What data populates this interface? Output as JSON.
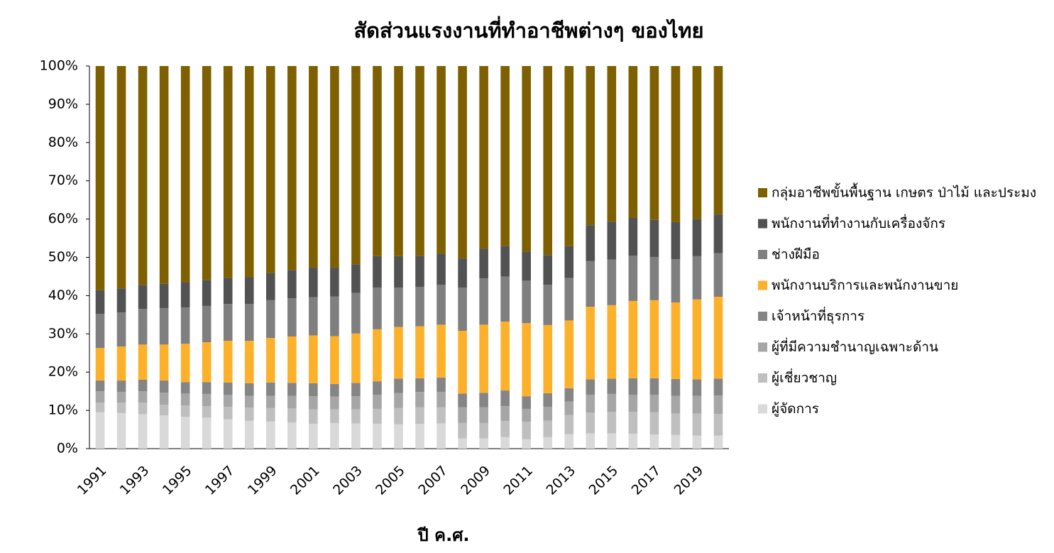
{
  "chart_data": {
    "type": "stacked_bar",
    "title": "สัดส่วนแรงงานที่ทำอาชีพต่างๆ ของไทย",
    "x_label": "ปี ค.ศ.",
    "categories": [
      "1991",
      null,
      "1993",
      null,
      "1995",
      null,
      "1997",
      null,
      "1999",
      null,
      "2001",
      null,
      "2003",
      null,
      "2005",
      null,
      "2007",
      null,
      "2009",
      null,
      "2011",
      null,
      "2013",
      null,
      "2015",
      null,
      "2017",
      null,
      "2019",
      null
    ],
    "ylim": [
      0,
      100
    ],
    "yticks": [
      {
        "value": 0,
        "label": "0%"
      },
      {
        "value": 10,
        "label": "10%"
      },
      {
        "value": 20,
        "label": "20%"
      },
      {
        "value": 30,
        "label": "30%"
      },
      {
        "value": 40,
        "label": "40%"
      },
      {
        "value": 50,
        "label": "50%"
      },
      {
        "value": 60,
        "label": "60%"
      },
      {
        "value": 70,
        "label": "70%"
      },
      {
        "value": 80,
        "label": "80%"
      },
      {
        "value": 90,
        "label": "90%"
      },
      {
        "value": 100,
        "label": "100%"
      }
    ],
    "legend": "right",
    "series": [
      {
        "name": "ผู้จัดการ",
        "color": "#d9d9d9",
        "values": [
          9.5,
          9.3,
          9.0,
          8.7,
          8.3,
          8.1,
          7.7,
          7.3,
          7.1,
          6.8,
          6.5,
          6.7,
          6.6,
          6.5,
          6.4,
          6.5,
          6.6,
          2.7,
          2.7,
          3.0,
          2.5,
          3.0,
          3.8,
          4.0,
          4.0,
          3.9,
          3.7,
          3.6,
          3.4,
          3.4
        ]
      },
      {
        "name": "ผู้เชี่ยวชาญ",
        "color": "#bfbfbf",
        "values": [
          2.5,
          2.7,
          3.0,
          2.8,
          3.0,
          3.0,
          3.2,
          3.4,
          3.5,
          3.7,
          3.8,
          3.6,
          3.7,
          3.9,
          4.2,
          4.3,
          4.2,
          4.0,
          4.0,
          4.2,
          4.5,
          4.3,
          5.0,
          5.4,
          5.6,
          5.7,
          5.8,
          5.6,
          5.8,
          5.7
        ]
      },
      {
        "name": "ผู้ที่มีความชำนาญเฉพาะด้าน",
        "color": "#a6a6a6",
        "values": [
          3.0,
          2.8,
          3.0,
          3.1,
          3.1,
          3.2,
          3.2,
          3.1,
          3.2,
          3.3,
          3.4,
          3.3,
          3.4,
          3.7,
          3.9,
          4.0,
          4.0,
          4.1,
          4.1,
          3.9,
          3.4,
          3.6,
          3.5,
          4.7,
          4.7,
          4.5,
          4.6,
          4.6,
          4.6,
          4.8
        ]
      },
      {
        "name": "เจ้าหน้าที่ธุรการ",
        "color": "#858585",
        "values": [
          2.8,
          3.0,
          3.0,
          3.2,
          3.0,
          3.1,
          3.2,
          3.3,
          3.5,
          3.4,
          3.4,
          3.3,
          3.5,
          3.5,
          3.8,
          3.6,
          3.8,
          3.6,
          3.8,
          4.1,
          3.3,
          3.6,
          3.5,
          4.0,
          4.0,
          4.3,
          4.3,
          4.4,
          4.3,
          4.4
        ]
      },
      {
        "name": "พนักงานบริการและพนักงานขาย",
        "color": "#fdb12b",
        "values": [
          8.5,
          8.9,
          9.2,
          9.4,
          10.0,
          10.4,
          10.9,
          11.1,
          11.6,
          12.1,
          12.5,
          12.5,
          12.9,
          13.6,
          13.5,
          13.6,
          13.8,
          16.4,
          17.8,
          18.0,
          19.1,
          17.8,
          17.7,
          19.0,
          19.2,
          20.2,
          20.4,
          20.0,
          20.9,
          21.4
        ]
      },
      {
        "name": "ช่างฝีมือ",
        "color": "#7f7f7f",
        "values": [
          8.9,
          8.9,
          9.3,
          9.5,
          9.5,
          9.5,
          9.6,
          9.6,
          9.9,
          10.0,
          10.0,
          10.4,
          10.6,
          10.9,
          10.3,
          10.3,
          10.4,
          11.3,
          12.1,
          11.8,
          11.1,
          10.5,
          11.1,
          11.9,
          11.9,
          11.8,
          11.3,
          11.3,
          11.3,
          11.4
        ]
      },
      {
        "name": "พนักงานที่ทำงานกับเครื่องจักร",
        "color": "#525252",
        "values": [
          6.2,
          6.3,
          6.3,
          6.4,
          6.6,
          6.8,
          6.8,
          7.0,
          7.1,
          7.4,
          7.7,
          7.5,
          7.5,
          8.2,
          8.2,
          8.1,
          8.2,
          7.6,
          7.8,
          7.9,
          7.6,
          7.8,
          8.3,
          9.4,
          9.9,
          9.9,
          9.7,
          9.7,
          9.7,
          10.1
        ]
      },
      {
        "name": "กลุ่มอาชีพขั้นพื้นฐาน เกษตร ป่าไม้ และประมง",
        "color": "#7f6000",
        "values": [
          58.6,
          58.1,
          57.2,
          56.9,
          56.5,
          55.9,
          55.4,
          55.2,
          54.1,
          53.3,
          52.7,
          52.7,
          51.8,
          49.7,
          49.7,
          49.6,
          49.0,
          50.3,
          47.7,
          47.1,
          48.5,
          49.4,
          47.1,
          41.6,
          40.7,
          39.7,
          40.2,
          40.8,
          40.0,
          38.8
        ]
      }
    ]
  }
}
